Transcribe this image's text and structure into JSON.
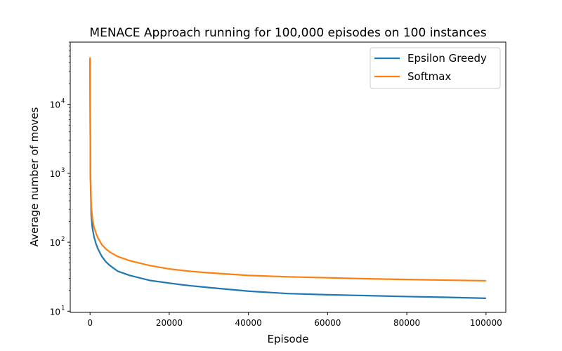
{
  "chart_data": {
    "type": "line",
    "title": "MENACE Approach running for 100,000 episodes on 100 instances",
    "xlabel": "Episode",
    "ylabel": "Average number of moves",
    "xlim": [
      -5000,
      105000
    ],
    "ylim": [
      9.6,
      80000
    ],
    "yscale": "log",
    "x_ticks": [
      0,
      20000,
      40000,
      60000,
      80000,
      100000
    ],
    "x_tick_labels": [
      "0",
      "20000",
      "40000",
      "60000",
      "80000",
      "100000"
    ],
    "y_ticks": [
      10,
      100,
      1000,
      10000
    ],
    "y_tick_labels": [
      "10",
      "10",
      "10",
      "10"
    ],
    "y_tick_exponents": [
      "1",
      "2",
      "3",
      "4"
    ],
    "legend_position": "top-right",
    "series": [
      {
        "name": "Epsilon Greedy",
        "color": "#1f77b4",
        "x": [
          0,
          100,
          300,
          600,
          1000,
          1500,
          2000,
          3000,
          4000,
          5000,
          7000,
          10000,
          15000,
          20000,
          25000,
          30000,
          40000,
          50000,
          60000,
          70000,
          80000,
          90000,
          100000
        ],
        "y": [
          45000,
          900,
          250,
          160,
          120,
          95,
          80,
          62,
          52,
          46,
          38,
          33,
          28,
          25.5,
          23.5,
          22,
          19.5,
          18,
          17.3,
          16.8,
          16.3,
          15.9,
          15.4
        ]
      },
      {
        "name": "Softmax",
        "color": "#ff7f0e",
        "x": [
          0,
          100,
          300,
          600,
          1000,
          1500,
          2000,
          3000,
          4000,
          5000,
          7000,
          10000,
          15000,
          20000,
          25000,
          30000,
          40000,
          50000,
          60000,
          70000,
          80000,
          90000,
          100000
        ],
        "y": [
          48000,
          1000,
          330,
          220,
          165,
          135,
          115,
          92,
          80,
          72,
          62,
          54,
          46,
          41,
          38,
          36,
          33,
          31.5,
          30.5,
          29.5,
          28.8,
          28.2,
          27.6
        ]
      }
    ]
  }
}
